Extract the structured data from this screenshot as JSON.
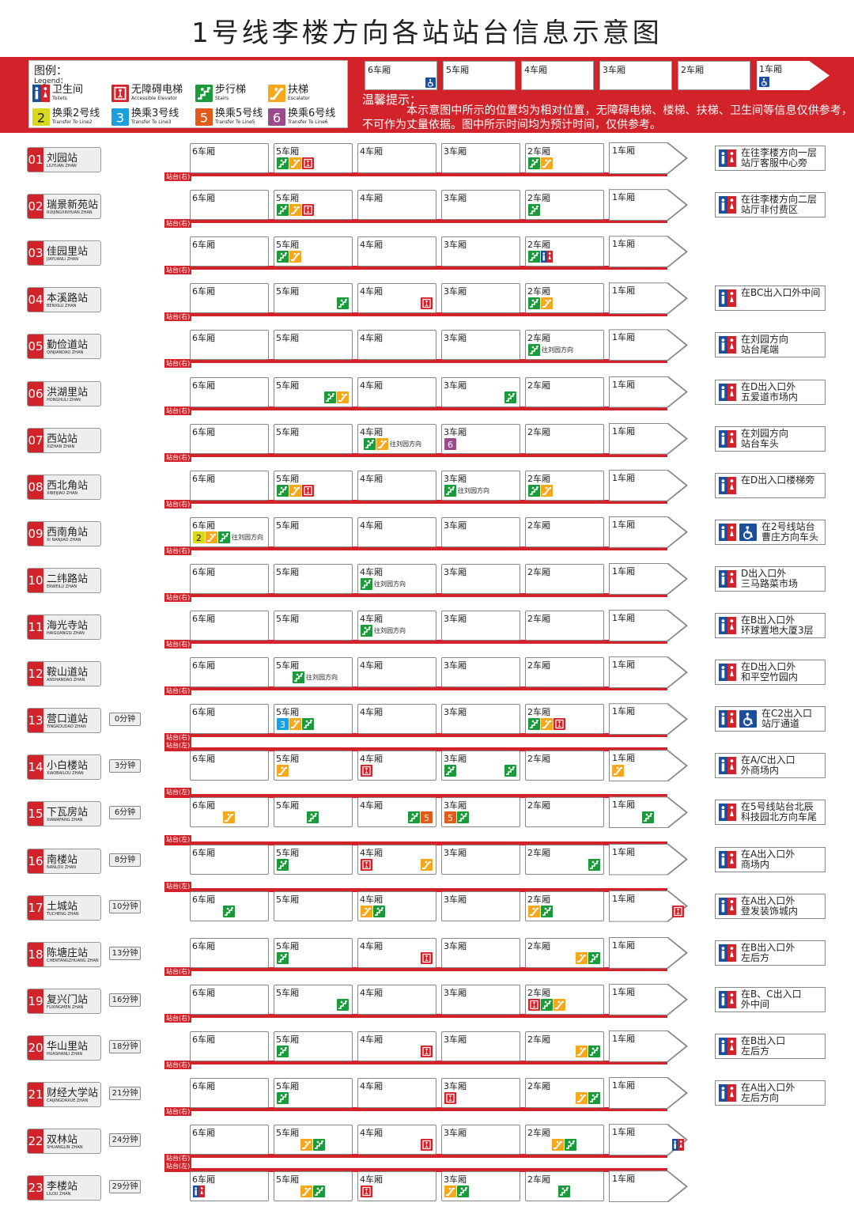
{
  "title": "1号线李楼方向各站站台信息示意图",
  "legend": {
    "heading": "图例：",
    "heading_en": "Legend：",
    "items": [
      {
        "zh": "卫生间",
        "en": "Toilets"
      },
      {
        "zh": "无障碍电梯",
        "en": "Accessible Elevator"
      },
      {
        "zh": "步行梯",
        "en": "Stairs"
      },
      {
        "zh": "扶梯",
        "en": "Escalator"
      },
      {
        "zh": "换乘2号线",
        "en": "Transfer To Line2"
      },
      {
        "zh": "换乘3号线",
        "en": "Transfer To Line3"
      },
      {
        "zh": "换乘5号线",
        "en": "Transfer To Line5"
      },
      {
        "zh": "换乘6号线",
        "en": "Transfer To Line6"
      }
    ]
  },
  "header_cars": [
    "6车厢",
    "5车厢",
    "4车厢",
    "3车厢",
    "2车厢",
    "1车厢"
  ],
  "tip": {
    "heading": "温馨提示：",
    "body": "本示意图中所示的位置均为相对位置，无障碍电梯、楼梯、扶梯、卫生间等信息仅供参考，不可作为丈量依据。图中所示时间均为预计时间，仅供参考。"
  },
  "car_labels": [
    "6车厢",
    "5车厢",
    "4车厢",
    "3车厢",
    "2车厢",
    "1车厢"
  ],
  "side_right": "站台(右)",
  "side_left": "站台(左)",
  "icon_names": {
    "T": "toilet-icon",
    "A": "accessible-elevator-icon",
    "S": "stairs-icon",
    "E": "escalator-icon",
    "2": "transfer-line2-icon",
    "3": "transfer-line3-icon",
    "5": "transfer-line5-icon",
    "6": "transfer-line6-icon",
    "W": "wheelchair-icon"
  },
  "colors": {
    "brand": "#d2232a",
    "stairs": "#1a9a3a",
    "escalator": "#f5a81c",
    "toilet_blue": "#1b4f9c",
    "toilet_red": "#d2232a",
    "line2": "#d8d81c",
    "line3": "#1aa0dc",
    "line5": "#e25a1a",
    "line6": "#9c4a8c"
  },
  "stations": [
    {
      "num": "01",
      "zh": "刘园站",
      "en": "LIUYUAN ZHAN",
      "time": "",
      "side": "right",
      "info": "在往李楼方向一层\n站厅客服中心旁",
      "info_icons": "T",
      "icons": [
        {
          "c": 1,
          "t": [
            "S",
            "E",
            "A"
          ],
          "a": "l"
        },
        {
          "c": 4,
          "t": [
            "S",
            "E"
          ],
          "a": "l"
        }
      ]
    },
    {
      "num": "02",
      "zh": "瑞景新苑站",
      "en": "RUIJINGXINYUAN ZHAN",
      "time": "",
      "side": "right",
      "info": "在往李楼方向二层\n站厅非付费区",
      "info_icons": "T",
      "icons": [
        {
          "c": 1,
          "t": [
            "S",
            "E",
            "A"
          ],
          "a": "l"
        },
        {
          "c": 4,
          "t": [
            "S"
          ],
          "a": "l"
        }
      ]
    },
    {
      "num": "03",
      "zh": "佳园里站",
      "en": "JIAYUANLI ZHAN",
      "time": "",
      "side": "right",
      "info": "",
      "info_icons": "",
      "icons": [
        {
          "c": 1,
          "t": [
            "S",
            "E"
          ],
          "a": "l"
        },
        {
          "c": 4,
          "t": [
            "S",
            "T"
          ],
          "a": "l"
        }
      ]
    },
    {
      "num": "04",
      "zh": "本溪路站",
      "en": "BENXILU ZHAN",
      "time": "",
      "side": "right",
      "info": "在BC出入口外中间",
      "info_icons": "T",
      "icons": [
        {
          "c": 1,
          "t": [
            "S"
          ],
          "a": "r"
        },
        {
          "c": 2,
          "t": [
            "A"
          ],
          "a": "r"
        },
        {
          "c": 4,
          "t": [
            "S",
            "E"
          ],
          "a": "l"
        }
      ]
    },
    {
      "num": "05",
      "zh": "勤俭道站",
      "en": "QINJIANDAO ZHAN",
      "time": "",
      "side": "right",
      "info": "在刘园方向\n站台尾端",
      "info_icons": "T",
      "icons": [
        {
          "c": 4,
          "t": [
            "S"
          ],
          "a": "l",
          "n": "往刘园方向"
        }
      ]
    },
    {
      "num": "06",
      "zh": "洪湖里站",
      "en": "HONGHULI ZHAN",
      "time": "",
      "side": "right",
      "info": "在D出入口外\n五爱道市场内",
      "info_icons": "T",
      "icons": [
        {
          "c": 1,
          "t": [
            "S",
            "E"
          ],
          "a": "r"
        },
        {
          "c": 3,
          "t": [
            "S"
          ],
          "a": "r"
        }
      ]
    },
    {
      "num": "07",
      "zh": "西站站",
      "en": "XIZHAN ZHAN",
      "time": "",
      "side": "right",
      "info": "在刘园方向\n站台车头",
      "info_icons": "T",
      "icons": [
        {
          "c": 2,
          "t": [
            "S",
            "E"
          ],
          "a": "r",
          "n": "往刘园方向"
        },
        {
          "c": 3,
          "t": [
            "6"
          ],
          "a": "l"
        }
      ]
    },
    {
      "num": "08",
      "zh": "西北角站",
      "en": "XIBEIJIAO ZHAN",
      "time": "",
      "side": "right",
      "info": "在D出入口楼梯旁",
      "info_icons": "T",
      "icons": [
        {
          "c": 1,
          "t": [
            "S",
            "E",
            "A"
          ],
          "a": "l"
        },
        {
          "c": 3,
          "t": [
            "S"
          ],
          "a": "l",
          "n": "往刘园方向"
        },
        {
          "c": 4,
          "t": [
            "S",
            "E"
          ],
          "a": "l"
        }
      ]
    },
    {
      "num": "09",
      "zh": "西南角站",
      "en": "XI NANJIAO ZHAN",
      "time": "",
      "side": "right",
      "info": "在2号线站台\n曹庄方向车头",
      "info_icons": "TW",
      "icons": [
        {
          "c": 0,
          "t": [
            "2",
            "E",
            "S"
          ],
          "a": "l",
          "n": "往刘园方向"
        }
      ]
    },
    {
      "num": "10",
      "zh": "二纬路站",
      "en": "ERWEILU ZHAN",
      "time": "",
      "side": "right",
      "info": "D出入口外\n三马路菜市场",
      "info_icons": "T",
      "icons": [
        {
          "c": 2,
          "t": [
            "S"
          ],
          "a": "l",
          "n": "往刘园方向"
        }
      ]
    },
    {
      "num": "11",
      "zh": "海光寺站",
      "en": "HAIGUANGSI ZHAN",
      "time": "",
      "side": "right",
      "info": "在B出入口外\n环球置地大厦3层",
      "info_icons": "T",
      "icons": [
        {
          "c": 2,
          "t": [
            "S"
          ],
          "a": "l",
          "n": "往刘园方向"
        }
      ]
    },
    {
      "num": "12",
      "zh": "鞍山道站",
      "en": "ANSHANDAO ZHAN",
      "time": "",
      "side": "right",
      "info": "在D出入口外\n和平空竹园内",
      "info_icons": "T",
      "icons": [
        {
          "c": 1,
          "t": [
            "S"
          ],
          "a": "r",
          "n": "往刘园方向"
        }
      ]
    },
    {
      "num": "13",
      "zh": "营口道站",
      "en": "YINGKOUDAO ZHAN",
      "time": "0分钟",
      "side": "right",
      "info": "在C2出入口\n站厅通道",
      "info_icons": "TW",
      "icons": [
        {
          "c": 1,
          "t": [
            "3",
            "E",
            "S"
          ],
          "a": "l"
        },
        {
          "c": 4,
          "t": [
            "S",
            "E",
            "A"
          ],
          "a": "l"
        }
      ]
    },
    {
      "num": "14",
      "zh": "小白楼站",
      "en": "XIAOBAILOU ZHAN",
      "time": "3分钟",
      "side": "left",
      "info": "在A/C出入口\n外商场内",
      "info_icons": "T",
      "icons": [
        {
          "c": 1,
          "t": [
            "E"
          ],
          "a": "l"
        },
        {
          "c": 2,
          "t": [
            "A"
          ],
          "a": "l"
        },
        {
          "c": 3,
          "t": [
            "S"
          ],
          "a": "l"
        },
        {
          "c": 3,
          "t": [
            "S"
          ],
          "a": "r"
        },
        {
          "c": 5,
          "t": [
            "E"
          ],
          "a": "l"
        }
      ]
    },
    {
      "num": "15",
      "zh": "下瓦房站",
      "en": "XIAWAFANG ZHAN",
      "time": "6分钟",
      "side": "left",
      "info": "在5号线站台北辰\n科技园北方向车尾",
      "info_icons": "T",
      "icons": [
        {
          "c": 0,
          "t": [
            "E"
          ],
          "a": "m"
        },
        {
          "c": 1,
          "t": [
            "S"
          ],
          "a": "m"
        },
        {
          "c": 2,
          "t": [
            "S",
            "5"
          ],
          "a": "r"
        },
        {
          "c": 3,
          "t": [
            "5",
            "S"
          ],
          "a": "l"
        },
        {
          "c": 5,
          "t": [
            "S"
          ],
          "a": "m"
        }
      ]
    },
    {
      "num": "16",
      "zh": "南楼站",
      "en": "NANLOU ZHAN",
      "time": "8分钟",
      "side": "left",
      "info": "在A出入口外\n商场内",
      "info_icons": "T",
      "icons": [
        {
          "c": 1,
          "t": [
            "S"
          ],
          "a": "l"
        },
        {
          "c": 2,
          "t": [
            "A"
          ],
          "a": "l"
        },
        {
          "c": 2,
          "t": [
            "E"
          ],
          "a": "r"
        },
        {
          "c": 4,
          "t": [
            "S"
          ],
          "a": "r"
        }
      ]
    },
    {
      "num": "17",
      "zh": "土城站",
      "en": "TUCHENG ZHAN",
      "time": "10分钟",
      "side": "left",
      "info": "在A出入口外\n登发装饰城内",
      "info_icons": "T",
      "icons": [
        {
          "c": 0,
          "t": [
            "S"
          ],
          "a": "m"
        },
        {
          "c": 2,
          "t": [
            "E",
            "S"
          ],
          "a": "l"
        },
        {
          "c": 4,
          "t": [
            "E",
            "S"
          ],
          "a": "l"
        },
        {
          "c": 5,
          "t": [
            "A"
          ],
          "a": "r"
        }
      ]
    },
    {
      "num": "18",
      "zh": "陈塘庄站",
      "en": "CHENTANGZHUANG ZHAN",
      "time": "13分钟",
      "side": "right",
      "info": "在B出入口外\n左后方",
      "info_icons": "T",
      "icons": [
        {
          "c": 1,
          "t": [
            "S"
          ],
          "a": "l"
        },
        {
          "c": 2,
          "t": [
            "A"
          ],
          "a": "r"
        },
        {
          "c": 4,
          "t": [
            "E",
            "S"
          ],
          "a": "r"
        }
      ]
    },
    {
      "num": "19",
      "zh": "复兴门站",
      "en": "FUXINGMEN ZHAN",
      "time": "16分钟",
      "side": "right",
      "info": "在B、C出入口\n外中间",
      "info_icons": "T",
      "icons": [
        {
          "c": 1,
          "t": [
            "S"
          ],
          "a": "r"
        },
        {
          "c": 4,
          "t": [
            "A",
            "S",
            "E"
          ],
          "a": "l"
        }
      ]
    },
    {
      "num": "20",
      "zh": "华山里站",
      "en": "HUASHANLI ZHAN",
      "time": "18分钟",
      "side": "right",
      "info": "在B出入口\n左后方",
      "info_icons": "T",
      "icons": [
        {
          "c": 1,
          "t": [
            "S"
          ],
          "a": "l"
        },
        {
          "c": 2,
          "t": [
            "A"
          ],
          "a": "r"
        },
        {
          "c": 4,
          "t": [
            "E",
            "S"
          ],
          "a": "r"
        }
      ]
    },
    {
      "num": "21",
      "zh": "财经大学站",
      "en": "CAIJINGDAXUE ZHAN",
      "time": "21分钟",
      "side": "right",
      "info": "在A出入口外\n左后方向",
      "info_icons": "T",
      "icons": [
        {
          "c": 1,
          "t": [
            "S"
          ],
          "a": "l"
        },
        {
          "c": 3,
          "t": [
            "A"
          ],
          "a": "l"
        },
        {
          "c": 4,
          "t": [
            "E",
            "S"
          ],
          "a": "r"
        }
      ]
    },
    {
      "num": "22",
      "zh": "双林站",
      "en": "SHUANGLIN ZHAN",
      "time": "24分钟",
      "side": "right",
      "info": "",
      "info_icons": "",
      "icons": [
        {
          "c": 1,
          "t": [
            "E",
            "S"
          ],
          "a": "m"
        },
        {
          "c": 2,
          "t": [
            "A"
          ],
          "a": "r"
        },
        {
          "c": 4,
          "t": [
            "E",
            "S"
          ],
          "a": "m"
        },
        {
          "c": 5,
          "t": [
            "T"
          ],
          "a": "r"
        }
      ]
    },
    {
      "num": "23",
      "zh": "李楼站",
      "en": "LILOU ZHAN",
      "time": "29分钟",
      "side": "left",
      "info": "",
      "info_icons": "",
      "icons": [
        {
          "c": 0,
          "t": [
            "T"
          ],
          "a": "l"
        },
        {
          "c": 1,
          "t": [
            "E",
            "S"
          ],
          "a": "m"
        },
        {
          "c": 2,
          "t": [
            "A"
          ],
          "a": "l"
        },
        {
          "c": 3,
          "t": [
            "E",
            "S"
          ],
          "a": "l"
        },
        {
          "c": 4,
          "t": [
            "S"
          ],
          "a": "m"
        }
      ]
    }
  ]
}
